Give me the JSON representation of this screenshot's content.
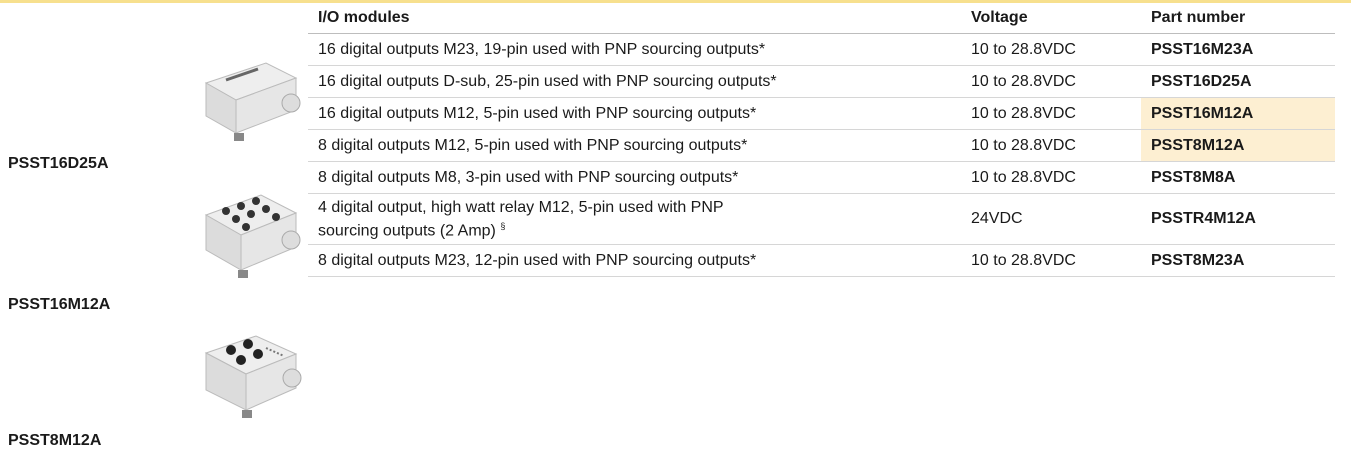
{
  "products": [
    {
      "label": "PSST16D25A"
    },
    {
      "label": "PSST16M12A"
    },
    {
      "label": "PSST8M12A"
    }
  ],
  "table": {
    "header": [
      "I/O modules",
      "Voltage",
      "Part number"
    ],
    "rows": [
      [
        "16 digital outputs M23, 19-pin used with PNP sourcing outputs*",
        "10 to 28.8VDC",
        "PSST16M23A"
      ],
      [
        "16 digital outputs D-sub, 25-pin used with PNP sourcing outputs*",
        "10 to 28.8VDC",
        "PSST16D25A"
      ],
      [
        "16 digital outputs M12, 5-pin used with PNP sourcing outputs*",
        "10 to 28.8VDC",
        "PSST16M12A"
      ],
      [
        "8 digital outputs M12, 5-pin used with PNP sourcing outputs*",
        "10 to 28.8VDC",
        "PSST8M12A"
      ],
      [
        "8 digital outputs M8, 3-pin used with PNP sourcing outputs*",
        "10 to 28.8VDC",
        "PSST8M8A"
      ],
      [
        "4 digital output, high watt relay M12, 5-pin used with PNP sourcing outputs (2 Amp)",
        "24VDC",
        "PSSTR4M12A"
      ],
      [
        "8 digital outputs M23, 12-pin used with PNP sourcing outputs*",
        "10 to 28.8VDC",
        "PSST8M23A"
      ]
    ],
    "footnote_mark": "§"
  }
}
